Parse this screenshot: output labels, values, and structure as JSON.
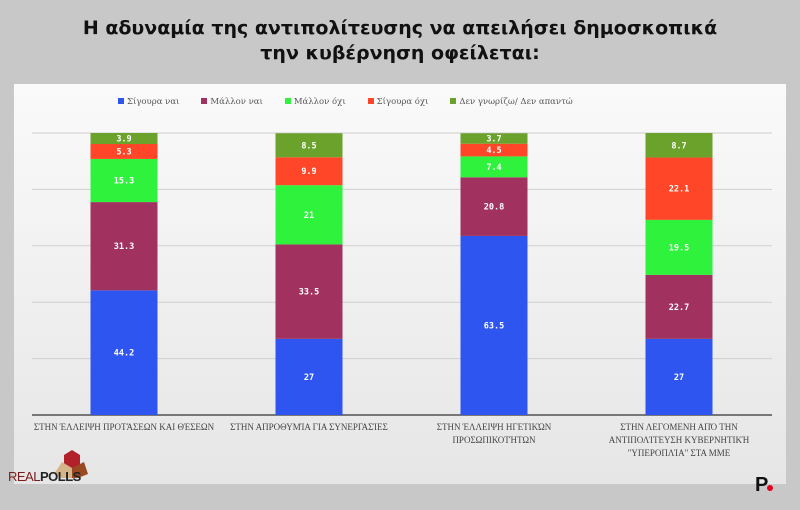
{
  "chart_data": {
    "type": "bar",
    "stacked": true,
    "title": "Η αδυναμία της αντιπολίτευσης να απειλήσει δημοσκοπικά την κυβέρνηση οφείλεται:",
    "title_lines": [
      "Η αδυναμία της αντιπολίτευσης να απειλήσει δημοσκοπικά",
      "την κυβέρνηση οφείλεται:"
    ],
    "categories": [
      [
        "ΣΤΗΝ ΈΛΛΕΙΨΗ ΠΡΟΤΆΣΕΩΝ ΚΑΙ ΘΈΣΕΩΝ"
      ],
      [
        "ΣΤΗΝ ΑΠΡΟΘΥΜΊΑ ΓΙΑ ΣΥΝΕΡΓΑΣΊΕΣ"
      ],
      [
        "ΣΤΗΝ ΈΛΛΕΙΨΗ ΗΓΕΤΙΚΏΝ",
        "ΠΡΟΣΩΠΙΚΟΤΉΤΩΝ"
      ],
      [
        "ΣΤΗΝ ΛΕΓΟΜΕΝΗ ΑΠΌ ΤΗΝ",
        "ΑΝΤΙΠΟΛΊΤΕΥΣΗ ΚΥΒΕΡΝΗΤΙΚΉ",
        "\"ΥΠΕΡΟΠΛΊΑ\" ΣΤΑ ΜΜΕ"
      ]
    ],
    "series": [
      {
        "name": "Σίγουρα ναι",
        "color": "#2f55f0",
        "values": [
          44.2,
          27,
          63.5,
          27
        ]
      },
      {
        "name": "Μάλλον ναι",
        "color": "#a1325f",
        "values": [
          31.3,
          33.5,
          20.8,
          22.7
        ]
      },
      {
        "name": "Μάλλον όχι",
        "color": "#2ff23c",
        "values": [
          15.3,
          21,
          7.4,
          19.5
        ]
      },
      {
        "name": "Σίγουρα όχι",
        "color": "#ff4628",
        "values": [
          5.3,
          9.9,
          4.5,
          22.1
        ]
      },
      {
        "name": "Δεν γνωρίζω/ Δεν απαντώ",
        "color": "#6aa22c",
        "values": [
          3.9,
          8.5,
          3.7,
          8.7
        ]
      }
    ],
    "ylim": [
      0,
      100
    ],
    "grid": true,
    "legend": "top"
  },
  "logos": {
    "realpolls": "REALPOLLS",
    "realpolls_a": "REAL",
    "realpolls_b": "POLLS",
    "publisher": "P."
  }
}
